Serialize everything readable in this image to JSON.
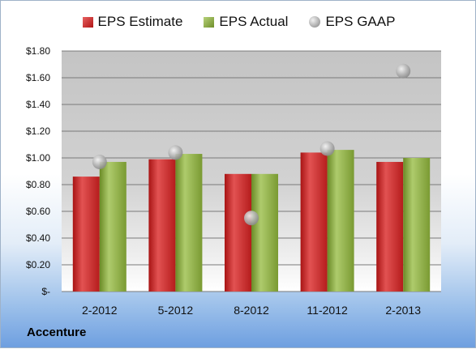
{
  "chart_data": {
    "type": "bar",
    "categories": [
      "2-2012",
      "5-2012",
      "8-2012",
      "11-2012",
      "2-2013"
    ],
    "series": [
      {
        "name": "EPS Estimate",
        "type": "bar",
        "values": [
          0.86,
          0.99,
          0.88,
          1.04,
          0.97
        ]
      },
      {
        "name": "EPS Actual",
        "type": "bar",
        "values": [
          0.97,
          1.03,
          0.88,
          1.06,
          1.0
        ]
      },
      {
        "name": "EPS GAAP",
        "type": "scatter",
        "values": [
          0.97,
          1.04,
          0.55,
          1.07,
          1.65
        ]
      }
    ],
    "yticks": [
      "$-",
      "$0.20",
      "$0.40",
      "$0.60",
      "$0.80",
      "$1.00",
      "$1.20",
      "$1.40",
      "$1.60",
      "$1.80"
    ],
    "ylim": [
      0,
      1.8
    ],
    "grid": true,
    "legend": "top",
    "colors": {
      "estimate": "#c42424",
      "actual": "#86a83c",
      "gaap": "#b0b0b0"
    }
  },
  "company_label": "Accenture"
}
